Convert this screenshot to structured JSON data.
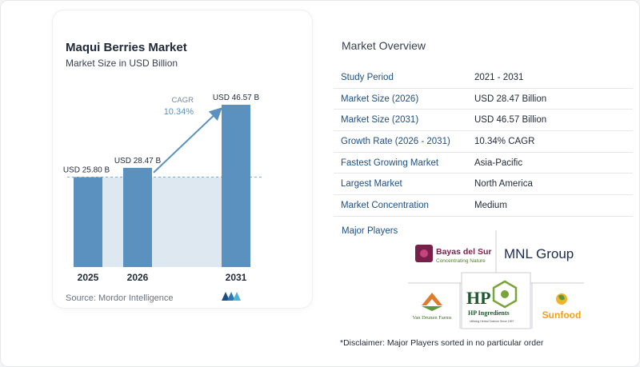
{
  "chart_data": {
    "type": "bar",
    "title": "Maqui Berries Market",
    "subtitle": "Market Size in USD Billion",
    "categories": [
      "2025",
      "2026",
      "2031"
    ],
    "values": [
      25.8,
      28.47,
      46.57
    ],
    "value_labels": [
      "USD 25.80 B",
      "USD 28.47 B",
      "USD 46.57 B"
    ],
    "cagr_label": "CAGR",
    "cagr_value": "10.34%",
    "colors": {
      "bar": "#5b91bf",
      "band": "#dde8f1",
      "arrow": "#5b91bf",
      "dash": "#8aa9c4"
    }
  },
  "source": "Source: Mordor Intelligence",
  "overview": {
    "title": "Market Overview",
    "rows": [
      {
        "key": "Study Period",
        "value": "2021 - 2031"
      },
      {
        "key": "Market Size (2026)",
        "value": "USD 28.47 Billion"
      },
      {
        "key": "Market Size (2031)",
        "value": "USD 46.57 Billion"
      },
      {
        "key": "Growth Rate (2026 - 2031)",
        "value": "10.34% CAGR"
      },
      {
        "key": "Fastest Growing Market",
        "value": "Asia-Pacific"
      },
      {
        "key": "Largest Market",
        "value": "North America"
      },
      {
        "key": "Market Concentration",
        "value": "Medium"
      }
    ]
  },
  "players": {
    "title": "Major Players",
    "logos": {
      "bayas": {
        "name": "Bayas del Sur",
        "tagline": "Concentrating Nature"
      },
      "mnl": {
        "name": "MNL Group"
      },
      "vandrunen": {
        "name": "Van Drunen Farms"
      },
      "hp": {
        "mark": "HP",
        "name": "HP Ingredients",
        "tagline": "Utilizing Herbal Science Since 1997"
      },
      "sunfood": {
        "name": "Sunfood"
      }
    }
  },
  "disclaimer": "*Disclaimer: Major Players sorted in no particular order"
}
